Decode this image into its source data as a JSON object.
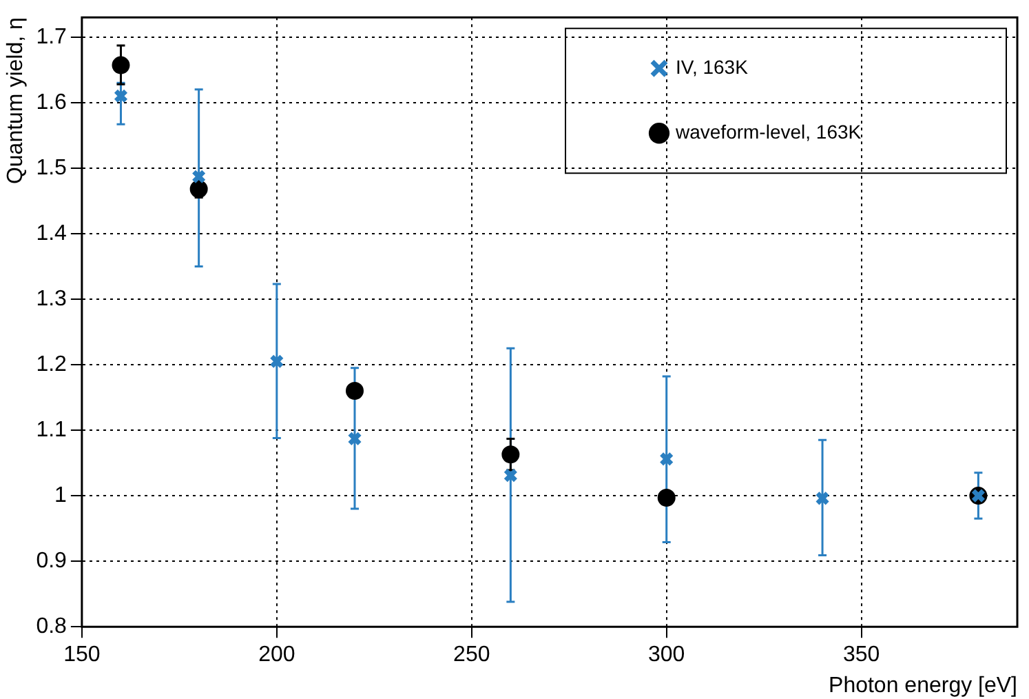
{
  "chart_data": {
    "type": "scatter",
    "xlabel": "Photon energy [eV]",
    "ylabel": "Quantum yield, η",
    "xlim": [
      150,
      390
    ],
    "xticks": [
      150,
      200,
      250,
      300,
      350
    ],
    "ylim": [
      0.8,
      1.73
    ],
    "yticks": [
      0.8,
      0.9,
      1,
      1.1,
      1.2,
      1.3,
      1.4,
      1.5,
      1.6,
      1.7
    ],
    "grid": true,
    "legend": "top right",
    "series": [
      {
        "name": "IV, 163K",
        "color": "#2a7fc1",
        "marker": "cross",
        "x": [
          160,
          180,
          200,
          220,
          260,
          300,
          340,
          380
        ],
        "values": [
          1.61,
          1.487,
          1.205,
          1.087,
          1.031,
          1.056,
          0.996,
          1.0
        ],
        "errors": [
          [
            1.567,
            1.63
          ],
          [
            1.35,
            1.62
          ],
          [
            1.088,
            1.323
          ],
          [
            0.98,
            1.195
          ],
          [
            0.838,
            1.225
          ],
          [
            0.929,
            1.182
          ],
          [
            0.909,
            1.085
          ],
          [
            0.965,
            1.035
          ]
        ]
      },
      {
        "name": "waveform-level, 163K",
        "color": "#000000",
        "marker": "circle",
        "x": [
          160,
          180,
          220,
          260,
          300,
          380
        ],
        "values": [
          1.657,
          1.468,
          1.16,
          1.063,
          0.997,
          1.0
        ],
        "errors": [
          [
            1.628,
            1.687
          ],
          [
            1.455,
            1.48
          ],
          null,
          [
            1.039,
            1.087
          ],
          null,
          null
        ]
      }
    ]
  }
}
